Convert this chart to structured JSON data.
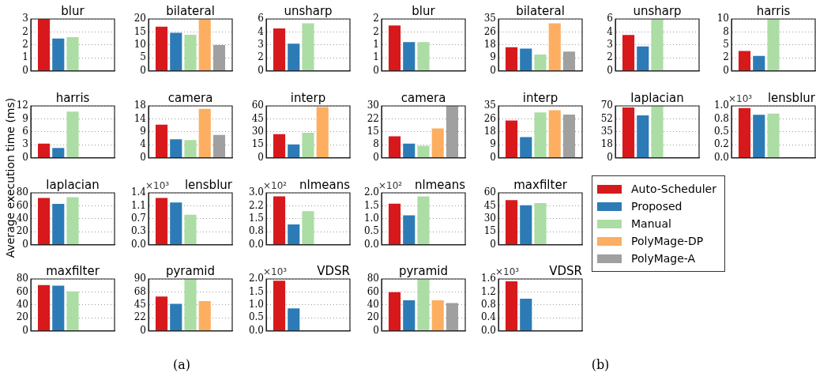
{
  "chart_data": [
    {
      "type": "bar",
      "title": "blur",
      "ylabel": "Average execution time (ms)",
      "categories": [
        null
      ],
      "ylim": [
        0,
        3
      ],
      "yticks": [
        0,
        {
          "value": 0.75,
          "label": "1"
        },
        {
          "value": 1.5,
          "label": "2"
        },
        {
          "value": 2.25,
          "label": "2"
        },
        3
      ],
      "grid": "y",
      "tick_labels": "y",
      "series": [
        {
          "color": "#d7191c",
          "values": [
            3.0
          ]
        },
        {
          "color": "#2c7bb6",
          "values": [
            1.87
          ]
        },
        {
          "color": "#abdda4",
          "values": [
            1.95
          ]
        },
        {
          "color": "#fdae61",
          "values": [
            null
          ]
        },
        {
          "color": "#a0a0a0",
          "values": [
            null
          ]
        }
      ]
    },
    {
      "type": "bar",
      "title": "bilateral",
      "categories": [
        null
      ],
      "ylim": [
        0,
        20
      ],
      "yticks": [
        0,
        5,
        10,
        15,
        20
      ],
      "grid": "y",
      "tick_labels": "y",
      "series": [
        {
          "color": "#d7191c",
          "values": [
            17.0
          ]
        },
        {
          "color": "#2c7bb6",
          "values": [
            14.7
          ]
        },
        {
          "color": "#abdda4",
          "values": [
            13.9
          ]
        },
        {
          "color": "#fdae61",
          "values": [
            20
          ]
        },
        {
          "color": "#a0a0a0",
          "values": [
            10.0
          ]
        }
      ]
    },
    {
      "type": "bar",
      "title": "unsharp",
      "categories": [
        null
      ],
      "ylim": [
        0,
        6
      ],
      "yticks": [
        0,
        {
          "value": 1.5,
          "label": "2"
        },
        3,
        {
          "value": 4.5,
          "label": "4"
        },
        6
      ],
      "grid": "y",
      "tick_labels": "y",
      "series": [
        {
          "color": "#d7191c",
          "values": [
            4.9
          ]
        },
        {
          "color": "#2c7bb6",
          "values": [
            3.15
          ]
        },
        {
          "color": "#abdda4",
          "values": [
            5.5
          ]
        },
        {
          "color": "#fdae61",
          "values": [
            null
          ]
        },
        {
          "color": "#a0a0a0",
          "values": [
            null
          ]
        }
      ]
    },
    {
      "type": "bar",
      "title": "blur",
      "categories": [
        null
      ],
      "ylim": [
        0,
        2.5
      ],
      "yticks": [
        0,
        {
          "value": 0.625,
          "label": "1"
        },
        {
          "value": 1.25,
          "label": "1"
        },
        {
          "value": 1.875,
          "label": "2"
        },
        {
          "value": 2.5,
          "label": "2"
        }
      ],
      "grid": "y",
      "tick_labels": "y",
      "series": [
        {
          "color": "#d7191c",
          "values": [
            2.19
          ]
        },
        {
          "color": "#2c7bb6",
          "values": [
            1.39
          ]
        },
        {
          "color": "#abdda4",
          "values": [
            1.39
          ]
        },
        {
          "color": "#fdae61",
          "values": [
            null
          ]
        },
        {
          "color": "#a0a0a0",
          "values": [
            null
          ]
        }
      ]
    },
    {
      "type": "bar",
      "title": "bilateral",
      "categories": [
        null
      ],
      "ylim": [
        0,
        35
      ],
      "yticks": [
        0,
        {
          "value": 8.75,
          "label": "9"
        },
        {
          "value": 17.5,
          "label": "18"
        },
        {
          "value": 26.25,
          "label": "26"
        },
        35
      ],
      "grid": "y",
      "tick_labels": "y",
      "series": [
        {
          "color": "#d7191c",
          "values": [
            16.0
          ]
        },
        {
          "color": "#2c7bb6",
          "values": [
            15.0
          ]
        },
        {
          "color": "#abdda4",
          "values": [
            11.1
          ]
        },
        {
          "color": "#fdae61",
          "values": [
            32.1
          ]
        },
        {
          "color": "#a0a0a0",
          "values": [
            13.0
          ]
        }
      ]
    },
    {
      "type": "bar",
      "title": "unsharp",
      "categories": [
        null
      ],
      "ylim": [
        0,
        6
      ],
      "yticks": [
        0,
        {
          "value": 1.5,
          "label": "2"
        },
        3,
        {
          "value": 4.5,
          "label": "4"
        },
        6
      ],
      "grid": "y",
      "tick_labels": "y",
      "series": [
        {
          "color": "#d7191c",
          "values": [
            4.16
          ]
        },
        {
          "color": "#2c7bb6",
          "values": [
            2.82
          ]
        },
        {
          "color": "#abdda4",
          "values": [
            6
          ]
        },
        {
          "color": "#fdae61",
          "values": [
            null
          ]
        },
        {
          "color": "#a0a0a0",
          "values": [
            null
          ]
        }
      ]
    },
    {
      "type": "bar",
      "title": "harris",
      "categories": [
        null
      ],
      "ylim": [
        0,
        10
      ],
      "yticks": [
        0,
        {
          "value": 2.5,
          "label": "2"
        },
        5,
        {
          "value": 7.5,
          "label": "8"
        },
        10
      ],
      "grid": "y",
      "tick_labels": "y",
      "series": [
        {
          "color": "#d7191c",
          "values": [
            3.86
          ]
        },
        {
          "color": "#2c7bb6",
          "values": [
            2.88
          ]
        },
        {
          "color": "#abdda4",
          "values": [
            10
          ]
        },
        {
          "color": "#fdae61",
          "values": [
            null
          ]
        },
        {
          "color": "#a0a0a0",
          "values": [
            null
          ]
        }
      ]
    },
    {
      "type": "bar",
      "title": "harris",
      "categories": [
        null
      ],
      "ylim": [
        0,
        12
      ],
      "yticks": [
        0,
        3,
        6,
        9,
        12
      ],
      "grid": "y",
      "tick_labels": "y",
      "series": [
        {
          "color": "#d7191c",
          "values": [
            3.3
          ]
        },
        {
          "color": "#2c7bb6",
          "values": [
            2.3
          ]
        },
        {
          "color": "#abdda4",
          "values": [
            10.7
          ]
        },
        {
          "color": "#fdae61",
          "values": [
            null
          ]
        },
        {
          "color": "#a0a0a0",
          "values": [
            null
          ]
        }
      ]
    },
    {
      "type": "bar",
      "title": "camera",
      "categories": [
        null
      ],
      "ylim": [
        0,
        18
      ],
      "yticks": [
        0,
        {
          "value": 4.5,
          "label": "4"
        },
        9,
        {
          "value": 13.5,
          "label": "14"
        },
        18
      ],
      "grid": "y",
      "tick_labels": "y",
      "series": [
        {
          "color": "#d7191c",
          "values": [
            11.5
          ]
        },
        {
          "color": "#2c7bb6",
          "values": [
            6.45
          ]
        },
        {
          "color": "#abdda4",
          "values": [
            6.2
          ]
        },
        {
          "color": "#fdae61",
          "values": [
            17.0
          ]
        },
        {
          "color": "#a0a0a0",
          "values": [
            7.95
          ]
        }
      ]
    },
    {
      "type": "bar",
      "title": "interp",
      "categories": [
        null
      ],
      "ylim": [
        0,
        60
      ],
      "yticks": [
        0,
        15,
        30,
        45,
        60
      ],
      "grid": "y",
      "tick_labels": "y",
      "series": [
        {
          "color": "#d7191c",
          "values": [
            27.3
          ]
        },
        {
          "color": "#2c7bb6",
          "values": [
            15.6
          ]
        },
        {
          "color": "#abdda4",
          "values": [
            29.0
          ]
        },
        {
          "color": "#fdae61",
          "values": [
            58.6
          ]
        },
        {
          "color": "#a0a0a0",
          "values": [
            null
          ]
        }
      ]
    },
    {
      "type": "bar",
      "title": "camera",
      "categories": [
        null
      ],
      "ylim": [
        0,
        30
      ],
      "yticks": [
        0,
        {
          "value": 7.5,
          "label": "8"
        },
        15,
        {
          "value": 22.5,
          "label": "22"
        },
        30
      ],
      "grid": "y",
      "tick_labels": "y",
      "series": [
        {
          "color": "#d7191c",
          "values": [
            12.4
          ]
        },
        {
          "color": "#2c7bb6",
          "values": [
            8.2
          ]
        },
        {
          "color": "#abdda4",
          "values": [
            7.0
          ]
        },
        {
          "color": "#fdae61",
          "values": [
            17.0
          ]
        },
        {
          "color": "#a0a0a0",
          "values": [
            30
          ]
        }
      ]
    },
    {
      "type": "bar",
      "title": "interp",
      "categories": [
        null
      ],
      "ylim": [
        0,
        35
      ],
      "yticks": [
        0,
        {
          "value": 8.75,
          "label": "9"
        },
        {
          "value": 17.5,
          "label": "18"
        },
        {
          "value": 26.25,
          "label": "26"
        },
        35
      ],
      "grid": "y",
      "tick_labels": "y",
      "series": [
        {
          "color": "#d7191c",
          "values": [
            25.2
          ]
        },
        {
          "color": "#2c7bb6",
          "values": [
            14.0
          ]
        },
        {
          "color": "#abdda4",
          "values": [
            30.6
          ]
        },
        {
          "color": "#fdae61",
          "values": [
            32.1
          ]
        },
        {
          "color": "#a0a0a0",
          "values": [
            29.1
          ]
        }
      ]
    },
    {
      "type": "bar",
      "title": "laplacian",
      "categories": [
        null
      ],
      "ylim": [
        0,
        70
      ],
      "yticks": [
        0,
        {
          "value": 17.5,
          "label": "18"
        },
        35,
        {
          "value": 52.5,
          "label": "52"
        },
        70
      ],
      "grid": "y",
      "tick_labels": "y",
      "series": [
        {
          "color": "#d7191c",
          "values": [
            68.0
          ]
        },
        {
          "color": "#2c7bb6",
          "values": [
            57.3
          ]
        },
        {
          "color": "#abdda4",
          "values": [
            70
          ]
        },
        {
          "color": "#fdae61",
          "values": [
            null
          ]
        },
        {
          "color": "#a0a0a0",
          "values": [
            null
          ]
        }
      ]
    },
    {
      "type": "bar",
      "title": "lensblur",
      "annotations": [
        "×10³"
      ],
      "categories": [
        null
      ],
      "ylim": [
        0,
        1.0
      ],
      "yticks": [
        {
          "value": 0,
          "label": "0.0"
        },
        {
          "value": 0.25,
          "label": "0.2"
        },
        {
          "value": 0.5,
          "label": "0.5"
        },
        {
          "value": 0.75,
          "label": "0.8"
        },
        {
          "value": 1.0,
          "label": "1.0"
        }
      ],
      "grid": "y",
      "tick_labels": "y",
      "series": [
        {
          "color": "#d7191c",
          "values": [
            0.96
          ]
        },
        {
          "color": "#2c7bb6",
          "values": [
            0.83
          ]
        },
        {
          "color": "#abdda4",
          "values": [
            0.85
          ]
        },
        {
          "color": "#fdae61",
          "values": [
            null
          ]
        },
        {
          "color": "#a0a0a0",
          "values": [
            null
          ]
        }
      ]
    },
    {
      "type": "bar",
      "title": "laplacian",
      "categories": [
        null
      ],
      "ylim": [
        0,
        80
      ],
      "yticks": [
        0,
        20,
        40,
        60,
        80
      ],
      "grid": "y",
      "tick_labels": "y",
      "series": [
        {
          "color": "#d7191c",
          "values": [
            72.1
          ]
        },
        {
          "color": "#2c7bb6",
          "values": [
            63.1
          ]
        },
        {
          "color": "#abdda4",
          "values": [
            73.2
          ]
        },
        {
          "color": "#fdae61",
          "values": [
            null
          ]
        },
        {
          "color": "#a0a0a0",
          "values": [
            null
          ]
        }
      ]
    },
    {
      "type": "bar",
      "title": "lensblur",
      "annotations": [
        "×10³"
      ],
      "categories": [
        null
      ],
      "ylim": [
        0,
        1.4
      ],
      "yticks": [
        {
          "value": 0,
          "label": "0.0"
        },
        {
          "value": 0.35,
          "label": "0.3"
        },
        {
          "value": 0.7,
          "label": "0.7"
        },
        {
          "value": 1.05,
          "label": "1.1"
        },
        {
          "value": 1.4,
          "label": "1.4"
        }
      ],
      "grid": "y",
      "tick_labels": "y",
      "series": [
        {
          "color": "#d7191c",
          "values": [
            1.26
          ]
        },
        {
          "color": "#2c7bb6",
          "values": [
            1.14
          ]
        },
        {
          "color": "#abdda4",
          "values": [
            0.81
          ]
        },
        {
          "color": "#fdae61",
          "values": [
            null
          ]
        },
        {
          "color": "#a0a0a0",
          "values": [
            null
          ]
        }
      ]
    },
    {
      "type": "bar",
      "title": "nlmeans",
      "annotations": [
        "×10²"
      ],
      "categories": [
        null
      ],
      "ylim": [
        0,
        3.0
      ],
      "yticks": [
        {
          "value": 0,
          "label": "0.0"
        },
        {
          "value": 0.75,
          "label": "0.8"
        },
        {
          "value": 1.5,
          "label": "1.5"
        },
        {
          "value": 2.25,
          "label": "2.2"
        },
        {
          "value": 3.0,
          "label": "3.0"
        }
      ],
      "grid": "y",
      "tick_labels": "y",
      "series": [
        {
          "color": "#d7191c",
          "values": [
            2.79
          ]
        },
        {
          "color": "#2c7bb6",
          "values": [
            1.18
          ]
        },
        {
          "color": "#abdda4",
          "values": [
            1.94
          ]
        },
        {
          "color": "#fdae61",
          "values": [
            null
          ]
        },
        {
          "color": "#a0a0a0",
          "values": [
            null
          ]
        }
      ]
    },
    {
      "type": "bar",
      "title": "nlmeans",
      "annotations": [
        "×10²"
      ],
      "categories": [
        null
      ],
      "ylim": [
        0,
        2.0
      ],
      "yticks": [
        {
          "value": 0,
          "label": "0.0"
        },
        {
          "value": 0.5,
          "label": "0.5"
        },
        {
          "value": 1.0,
          "label": "1.0"
        },
        {
          "value": 1.5,
          "label": "1.5"
        },
        {
          "value": 2.0,
          "label": "2.0"
        }
      ],
      "grid": "y",
      "tick_labels": "y",
      "series": [
        {
          "color": "#d7191c",
          "values": [
            1.58
          ]
        },
        {
          "color": "#2c7bb6",
          "values": [
            1.13
          ]
        },
        {
          "color": "#abdda4",
          "values": [
            1.86
          ]
        },
        {
          "color": "#fdae61",
          "values": [
            null
          ]
        },
        {
          "color": "#a0a0a0",
          "values": [
            null
          ]
        }
      ]
    },
    {
      "type": "bar",
      "title": "maxfilter",
      "legend": "right",
      "categories": [
        null
      ],
      "ylim": [
        0,
        60
      ],
      "yticks": [
        0,
        15,
        30,
        45,
        60
      ],
      "grid": "y",
      "tick_labels": "y",
      "series": [
        {
          "name": "Auto-Scheduler",
          "color": "#d7191c",
          "values": [
            51.5
          ]
        },
        {
          "name": "Proposed",
          "color": "#2c7bb6",
          "values": [
            45.6
          ]
        },
        {
          "name": "Manual",
          "color": "#abdda4",
          "values": [
            48.2
          ]
        },
        {
          "name": "PolyMage-DP",
          "color": "#fdae61",
          "values": [
            null
          ]
        },
        {
          "name": "PolyMage-A",
          "color": "#a0a0a0",
          "values": [
            null
          ]
        }
      ]
    },
    {
      "type": "bar",
      "title": "maxfilter",
      "categories": [
        null
      ],
      "ylim": [
        0,
        80
      ],
      "yticks": [
        0,
        20,
        40,
        60,
        80
      ],
      "grid": "y",
      "tick_labels": "y",
      "series": [
        {
          "color": "#d7191c",
          "values": [
            70.7
          ]
        },
        {
          "color": "#2c7bb6",
          "values": [
            69.6
          ]
        },
        {
          "color": "#abdda4",
          "values": [
            60.7
          ]
        },
        {
          "color": "#fdae61",
          "values": [
            null
          ]
        },
        {
          "color": "#a0a0a0",
          "values": [
            null
          ]
        }
      ]
    },
    {
      "type": "bar",
      "title": "pyramid",
      "categories": [
        null
      ],
      "ylim": [
        0,
        90
      ],
      "yticks": [
        0,
        {
          "value": 22.5,
          "label": "22"
        },
        45,
        {
          "value": 67.5,
          "label": "68"
        },
        90
      ],
      "grid": "y",
      "tick_labels": "y",
      "series": [
        {
          "color": "#d7191c",
          "values": [
            59.4
          ]
        },
        {
          "color": "#2c7bb6",
          "values": [
            46.9
          ]
        },
        {
          "color": "#abdda4",
          "values": [
            90
          ]
        },
        {
          "color": "#fdae61",
          "values": [
            51.6
          ]
        },
        {
          "color": "#a0a0a0",
          "values": [
            null
          ]
        }
      ]
    },
    {
      "type": "bar",
      "title": "VDSR",
      "annotations": [
        "×10³"
      ],
      "categories": [
        null
      ],
      "ylim": [
        0,
        2.0
      ],
      "yticks": [
        {
          "value": 0,
          "label": "0.0"
        },
        {
          "value": 0.5,
          "label": "0.5"
        },
        {
          "value": 1.0,
          "label": "1.0"
        },
        {
          "value": 1.5,
          "label": "1.5"
        },
        {
          "value": 2.0,
          "label": "2.0"
        }
      ],
      "grid": "y",
      "tick_labels": "y",
      "series": [
        {
          "color": "#d7191c",
          "values": [
            1.93
          ]
        },
        {
          "color": "#2c7bb6",
          "values": [
            0.87
          ]
        },
        {
          "color": "#abdda4",
          "values": [
            null
          ]
        },
        {
          "color": "#fdae61",
          "values": [
            null
          ]
        },
        {
          "color": "#a0a0a0",
          "values": [
            null
          ]
        }
      ]
    },
    {
      "type": "bar",
      "title": "pyramid",
      "categories": [
        null
      ],
      "ylim": [
        0,
        80
      ],
      "yticks": [
        0,
        20,
        40,
        60,
        80
      ],
      "grid": "y",
      "tick_labels": "y",
      "series": [
        {
          "color": "#d7191c",
          "values": [
            59.5
          ]
        },
        {
          "color": "#2c7bb6",
          "values": [
            47.3
          ]
        },
        {
          "color": "#abdda4",
          "values": [
            80
          ]
        },
        {
          "color": "#fdae61",
          "values": [
            47.3
          ]
        },
        {
          "color": "#a0a0a0",
          "values": [
            42.8
          ]
        }
      ]
    },
    {
      "type": "bar",
      "title": "VDSR",
      "annotations": [
        "×10³"
      ],
      "categories": [
        null
      ],
      "ylim": [
        0,
        1.6
      ],
      "yticks": [
        {
          "value": 0,
          "label": "0.0"
        },
        {
          "value": 0.4,
          "label": "0.4"
        },
        {
          "value": 0.8,
          "label": "0.8"
        },
        {
          "value": 1.2,
          "label": "1.2"
        },
        {
          "value": 1.6,
          "label": "1.6"
        }
      ],
      "grid": "y",
      "tick_labels": "y",
      "series": [
        {
          "color": "#d7191c",
          "values": [
            1.53
          ]
        },
        {
          "color": "#2c7bb6",
          "values": [
            0.99
          ]
        },
        {
          "color": "#abdda4",
          "values": [
            null
          ]
        },
        {
          "color": "#fdae61",
          "values": [
            null
          ]
        },
        {
          "color": "#a0a0a0",
          "values": [
            null
          ]
        }
      ]
    },
    {
      "type": "other",
      "annotations": [
        "(a)",
        "(b)"
      ]
    }
  ]
}
